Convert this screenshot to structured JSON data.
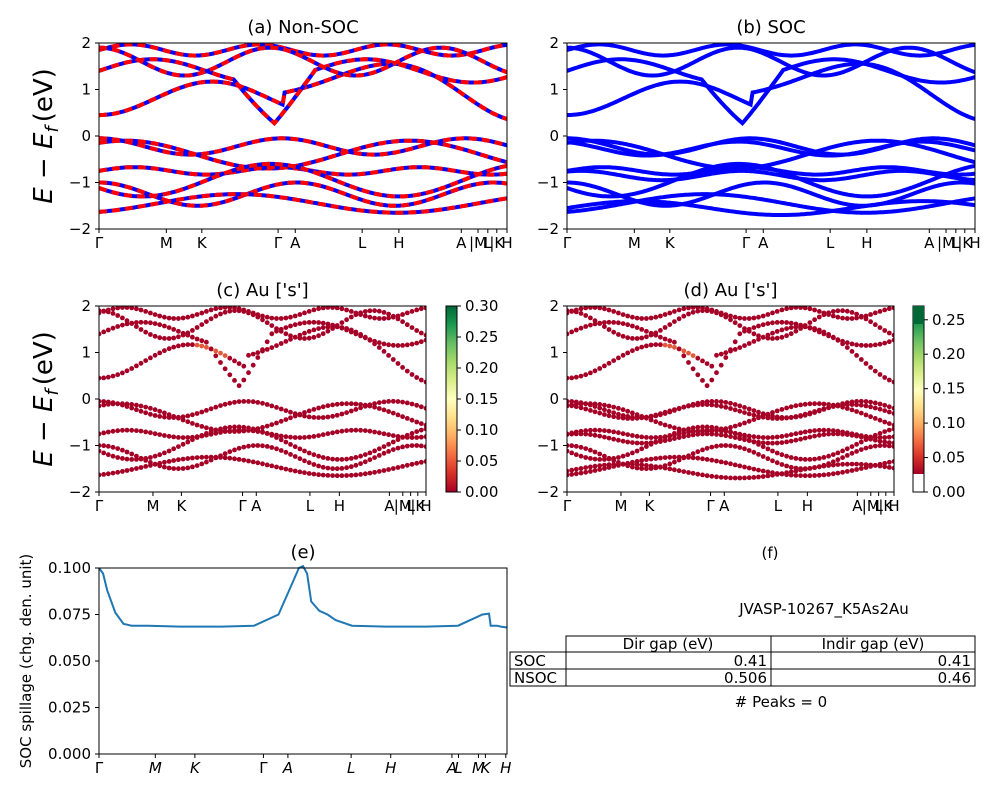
{
  "figure": {
    "ylabel_energy": "E − E",
    "ylabel_energy_sub": "f",
    "ylabel_energy_unit": "(eV)",
    "colors": {
      "red": "#ff0000",
      "blue": "#0000ff",
      "spillage": "#1f77b4"
    }
  },
  "kpath": [
    "Γ",
    "M",
    "K",
    "Γ",
    "A",
    "L",
    "H",
    "A",
    "|M",
    "L",
    "|K",
    "H"
  ],
  "kpath_spillage": [
    "Γ",
    "M",
    "K",
    "Γ",
    "A",
    "L",
    "H",
    "A",
    "L",
    "M",
    "K",
    "H"
  ],
  "chart_data": [
    {
      "id": "a",
      "type": "line",
      "title": "(a) Non-SOC",
      "ylim": [
        -2,
        2
      ],
      "yticks": [
        -2,
        -1,
        0,
        1,
        2
      ],
      "style": "red-blue-dashed",
      "description_bands": "band structure, bands approx: conduction 0.45–2, valence 0 to -1.7"
    },
    {
      "id": "b",
      "type": "line",
      "title": "(b) SOC",
      "ylim": [
        -2,
        2
      ],
      "yticks": [
        -2,
        -1,
        0,
        1,
        2
      ],
      "style": "blue"
    },
    {
      "id": "c",
      "type": "scatter",
      "title": "(c)  Au ['s']",
      "ylim": [
        -2,
        2
      ],
      "yticks": [
        -2,
        -1,
        0,
        1,
        2
      ],
      "colorbar": {
        "min": 0.0,
        "max": 0.3,
        "ticks": [
          "0.00",
          "0.05",
          "0.10",
          "0.15",
          "0.20",
          "0.25",
          "0.30"
        ]
      }
    },
    {
      "id": "d",
      "type": "scatter",
      "title": "(d) Au ['s']",
      "ylim": [
        -2,
        2
      ],
      "yticks": [
        -2,
        -1,
        0,
        1,
        2
      ],
      "colorbar": {
        "min": 0.0,
        "max": 0.27,
        "ticks": [
          "0.00",
          "0.05",
          "0.10",
          "0.15",
          "0.20",
          "0.25"
        ]
      }
    },
    {
      "id": "e",
      "type": "line",
      "title": "(e)",
      "ylabel": "SOC spillage (chg. den. unit)",
      "ylim": [
        0,
        0.1
      ],
      "yticks": [
        "0.000",
        "0.025",
        "0.050",
        "0.075",
        "0.100"
      ],
      "x": [
        0,
        0.01,
        0.02,
        0.04,
        0.06,
        0.08,
        0.12,
        0.2,
        0.3,
        0.38,
        0.44,
        0.47,
        0.49,
        0.5,
        0.51,
        0.52,
        0.54,
        0.56,
        0.58,
        0.62,
        0.7,
        0.8,
        0.88,
        0.92,
        0.94,
        0.956,
        0.96,
        0.975,
        0.985,
        1.0
      ],
      "y": [
        0.1,
        0.097,
        0.088,
        0.076,
        0.07,
        0.069,
        0.069,
        0.0685,
        0.0685,
        0.069,
        0.075,
        0.09,
        0.1,
        0.101,
        0.097,
        0.082,
        0.077,
        0.075,
        0.072,
        0.069,
        0.0685,
        0.0685,
        0.069,
        0.073,
        0.075,
        0.0755,
        0.069,
        0.069,
        0.0685,
        0.068
      ]
    }
  ],
  "table_panel": {
    "title": "(f)",
    "material": "JVASP-10267_K5As2Au",
    "col_headers": [
      "Dir gap (eV)",
      "Indir gap (eV)"
    ],
    "rows": [
      {
        "label": "SOC",
        "dir": "0.41",
        "indir": "0.41"
      },
      {
        "label": "NSOC",
        "dir": "0.506",
        "indir": "0.46"
      }
    ],
    "peaks": "# Peaks = 0"
  }
}
